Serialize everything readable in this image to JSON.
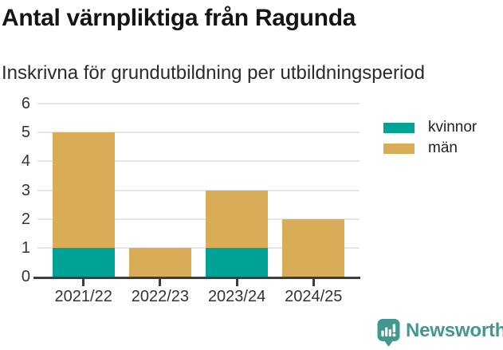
{
  "chart_data": {
    "type": "bar",
    "stacked": true,
    "title": "Antal värnpliktiga från Ragunda",
    "subtitle": "Inskrivna för grundutbildning per utbildningsperiod",
    "categories": [
      "2021/22",
      "2022/23",
      "2023/24",
      "2024/25"
    ],
    "series": [
      {
        "name": "kvinnor",
        "color": "#00A296",
        "values": [
          1,
          0,
          1,
          0
        ]
      },
      {
        "name": "män",
        "color": "#D9AC58",
        "values": [
          4,
          1,
          2,
          2
        ]
      }
    ],
    "stack_totals": [
      5,
      1,
      3,
      2
    ],
    "ylim": [
      0,
      6
    ],
    "yticks": [
      0,
      1,
      2,
      3,
      4,
      5,
      6
    ],
    "xlabel": "",
    "ylabel": "",
    "grid": true,
    "legend_position": "right"
  },
  "branding": {
    "logo_text": "Newsworthy",
    "logo_color": "#43978F",
    "logo_icon": "newsworthy-speech-bubble-bar-chart-icon"
  },
  "colors": {
    "series_kvinnor": "#00A296",
    "series_man": "#D9AC58",
    "gridline": "#E6E6E6",
    "axis": "#3D3D3D",
    "title_text": "#151515",
    "subtitle_text": "#2B2B2B",
    "tick_text": "#333333"
  }
}
